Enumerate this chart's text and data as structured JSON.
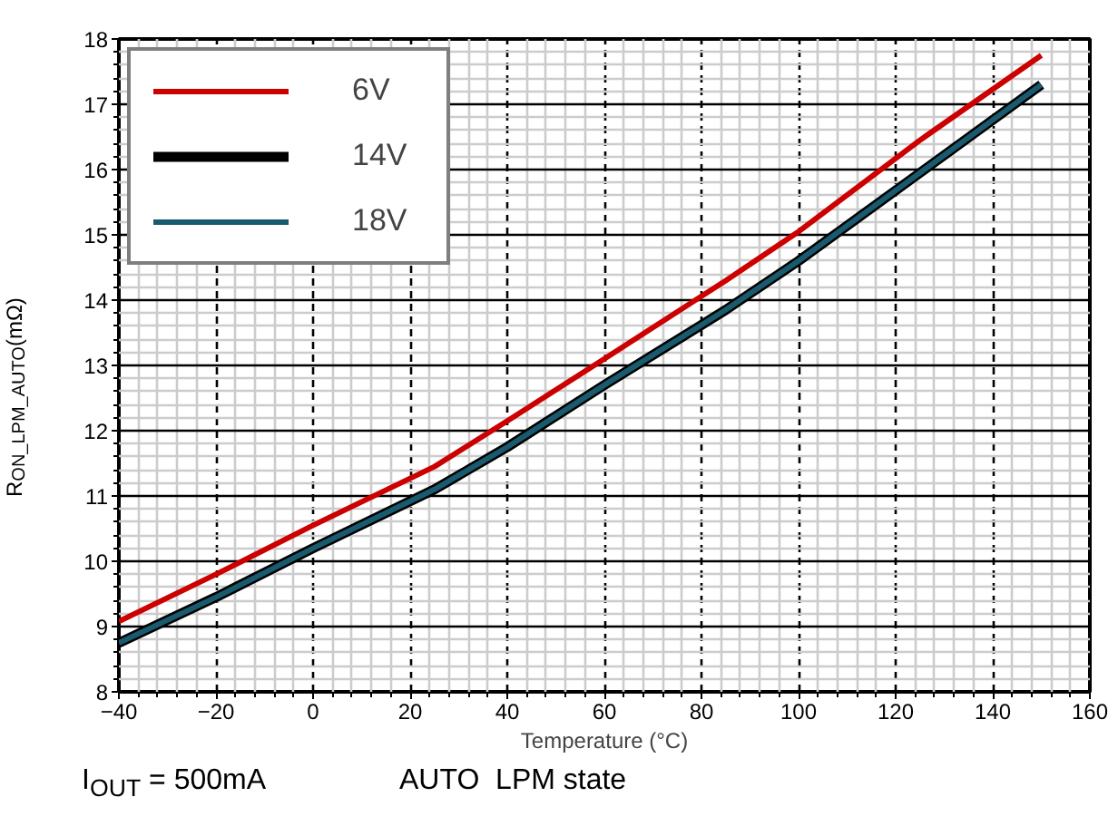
{
  "chart_data": {
    "type": "line",
    "xlabel": "Temperature (°C)",
    "ylabel": "R$_{ON_LPM_AUTO}$(mΩ)",
    "x": [
      -40,
      -20,
      0,
      25,
      40,
      60,
      85,
      100,
      125,
      150
    ],
    "series": [
      {
        "name": "6V",
        "color": "#cc0000",
        "values": [
          9.08,
          9.8,
          10.55,
          11.45,
          12.15,
          13.1,
          14.3,
          15.05,
          16.45,
          17.75
        ]
      },
      {
        "name": "14V",
        "color": "#000000",
        "values": [
          8.75,
          9.45,
          10.2,
          11.1,
          11.75,
          12.7,
          13.85,
          14.6,
          15.95,
          17.3
        ]
      },
      {
        "name": "18V",
        "color": "#1a5a6e",
        "values": [
          8.75,
          9.45,
          10.2,
          11.1,
          11.75,
          12.7,
          13.85,
          14.6,
          15.95,
          17.3
        ]
      }
    ],
    "xlim": [
      -40,
      160
    ],
    "xticks": [
      -40,
      -20,
      0,
      20,
      40,
      60,
      80,
      100,
      120,
      140,
      160
    ],
    "ylim": [
      8,
      18
    ],
    "yticks": [
      8,
      9,
      10,
      11,
      12,
      13,
      14,
      15,
      16,
      17,
      18
    ],
    "grid": true,
    "legend": "top left",
    "marker": "none",
    "line_style": "solid",
    "annotations": [
      "I$_{OUT}$ = 500mA",
      "AUTO  LPM state"
    ]
  }
}
